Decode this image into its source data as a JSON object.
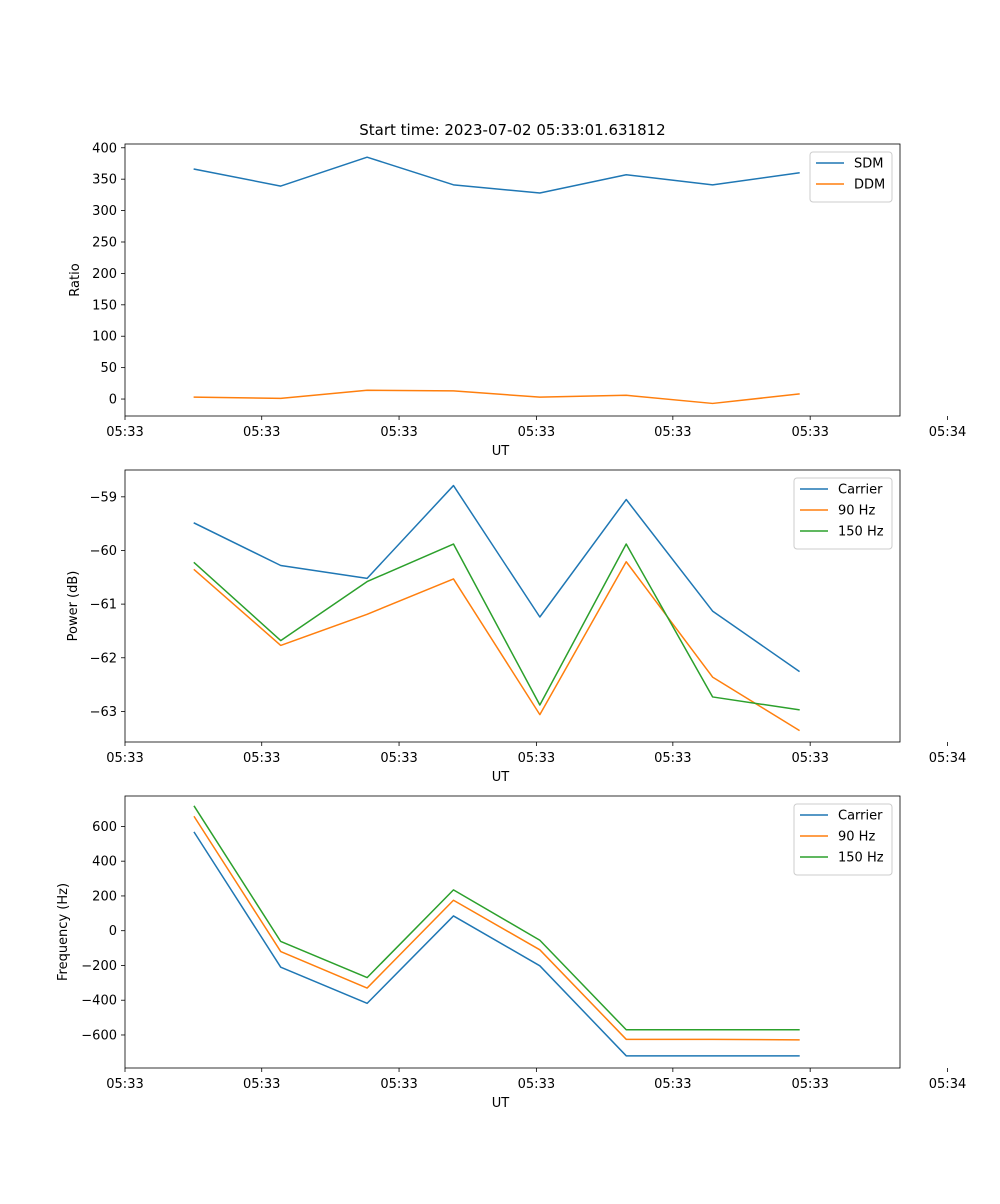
{
  "figure": {
    "title": "Start time: 2023-07-02 05:33:01.631812"
  },
  "colors": {
    "blue": "#1f77b4",
    "orange": "#ff7f0e",
    "green": "#2ca02c",
    "axis": "#000000",
    "legend_border": "#cccccc"
  },
  "chart_data": [
    {
      "type": "line",
      "title": "Start time: 2023-07-02 05:33:01.631812",
      "xlabel": "UT",
      "ylabel": "Ratio",
      "x": [
        1,
        2,
        3,
        4,
        5,
        6,
        7,
        8
      ],
      "xlim": [
        0.197,
        9.17
      ],
      "x_ticks": [
        0.197,
        1.78,
        3.37,
        4.96,
        6.54,
        8.13,
        9.72
      ],
      "x_tick_labels": [
        "05:33",
        "05:33",
        "05:33",
        "05:33",
        "05:33",
        "05:33",
        "05:34"
      ],
      "ylim": [
        -27,
        406
      ],
      "y_ticks": [
        0,
        50,
        100,
        150,
        200,
        250,
        300,
        350,
        400
      ],
      "y_tick_labels": [
        "0",
        "50",
        "100",
        "150",
        "200",
        "250",
        "300",
        "350",
        "400"
      ],
      "legend_position": "top-right",
      "series": [
        {
          "name": "SDM",
          "color": "#1f77b4",
          "values": [
            366,
            339,
            385,
            341,
            328,
            357,
            341,
            360
          ]
        },
        {
          "name": "DDM",
          "color": "#ff7f0e",
          "values": [
            3,
            1,
            14,
            13,
            3,
            6,
            -7,
            8
          ]
        }
      ]
    },
    {
      "type": "line",
      "title": "",
      "xlabel": "UT",
      "ylabel": "Power (dB)",
      "x": [
        1,
        2,
        3,
        4,
        5,
        6,
        7,
        8
      ],
      "xlim": [
        0.197,
        9.17
      ],
      "x_ticks": [
        0.197,
        1.78,
        3.37,
        4.96,
        6.54,
        8.13,
        9.72
      ],
      "x_tick_labels": [
        "05:33",
        "05:33",
        "05:33",
        "05:33",
        "05:33",
        "05:33",
        "05:34"
      ],
      "ylim": [
        -63.57,
        -58.5
      ],
      "y_ticks": [
        -63,
        -62,
        -61,
        -60,
        -59
      ],
      "y_tick_labels": [
        "−63",
        "−62",
        "−61",
        "−60",
        "−59"
      ],
      "legend_position": "top-right",
      "series": [
        {
          "name": "Carrier",
          "color": "#1f77b4",
          "values": [
            -59.49,
            -60.28,
            -60.52,
            -58.79,
            -61.24,
            -59.05,
            -61.13,
            -62.25
          ]
        },
        {
          "name": "90 Hz",
          "color": "#ff7f0e",
          "values": [
            -60.36,
            -61.77,
            -61.19,
            -60.53,
            -63.06,
            -60.21,
            -62.36,
            -63.35
          ]
        },
        {
          "name": "150 Hz",
          "color": "#2ca02c",
          "values": [
            -60.23,
            -61.68,
            -60.58,
            -59.88,
            -62.88,
            -59.88,
            -62.73,
            -62.97
          ]
        }
      ]
    },
    {
      "type": "line",
      "title": "",
      "xlabel": "UT",
      "ylabel": "Frequency (Hz)",
      "x": [
        1,
        2,
        3,
        4,
        5,
        6,
        7,
        8
      ],
      "xlim": [
        0.197,
        9.17
      ],
      "x_ticks": [
        0.197,
        1.78,
        3.37,
        4.96,
        6.54,
        8.13,
        9.72
      ],
      "x_tick_labels": [
        "05:33",
        "05:33",
        "05:33",
        "05:33",
        "05:33",
        "05:33",
        "05:34"
      ],
      "ylim": [
        -790,
        775
      ],
      "y_ticks": [
        -600,
        -400,
        -200,
        0,
        200,
        400,
        600
      ],
      "y_tick_labels": [
        "−600",
        "−400",
        "−200",
        "0",
        "200",
        "400",
        "600"
      ],
      "legend_position": "top-right",
      "series": [
        {
          "name": "Carrier",
          "color": "#1f77b4",
          "values": [
            565,
            -210,
            -418,
            85,
            -202,
            -720,
            -720,
            -720
          ]
        },
        {
          "name": "90 Hz",
          "color": "#ff7f0e",
          "values": [
            655,
            -120,
            -330,
            175,
            -110,
            -625,
            -625,
            -628
          ]
        },
        {
          "name": "150 Hz",
          "color": "#2ca02c",
          "values": [
            715,
            -62,
            -270,
            235,
            -55,
            -570,
            -570,
            -570
          ]
        }
      ]
    }
  ]
}
